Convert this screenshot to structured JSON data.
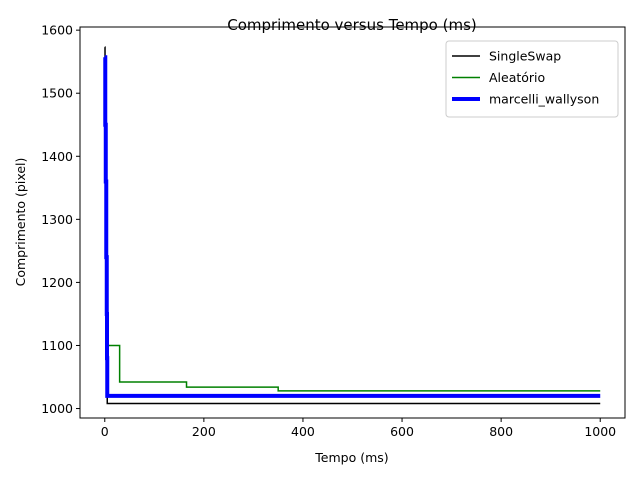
{
  "chart_data": {
    "type": "line",
    "title": "Comprimento versus Tempo (ms)",
    "xlabel": "Tempo (ms)",
    "ylabel": "Comprimento (pixel)",
    "xlim": [
      -50,
      1050
    ],
    "ylim": [
      985,
      1605
    ],
    "xticks": [
      0,
      200,
      400,
      600,
      800,
      1000
    ],
    "yticks": [
      1000,
      1100,
      1200,
      1300,
      1400,
      1500,
      1600
    ],
    "grid": false,
    "legend_position": "top-right",
    "series": [
      {
        "name": "SingleSwap",
        "color": "#000000",
        "width": 1.5,
        "step": "post",
        "points": [
          [
            0,
            1573
          ],
          [
            0.5,
            1520
          ],
          [
            1,
            1450
          ],
          [
            1.5,
            1380
          ],
          [
            2,
            1300
          ],
          [
            2.5,
            1230
          ],
          [
            3,
            1160
          ],
          [
            3.5,
            1080
          ],
          [
            4,
            1040
          ],
          [
            5,
            1008
          ],
          [
            1000,
            1008
          ]
        ]
      },
      {
        "name": "Aleatório",
        "color": "#008000",
        "width": 1.5,
        "step": "post",
        "points": [
          [
            0,
            1540
          ],
          [
            1,
            1470
          ],
          [
            2,
            1400
          ],
          [
            3,
            1300
          ],
          [
            4,
            1200
          ],
          [
            5,
            1100
          ],
          [
            30,
            1042
          ],
          [
            165,
            1034
          ],
          [
            350,
            1028
          ],
          [
            1000,
            1028
          ]
        ]
      },
      {
        "name": "marcelli_wallyson",
        "color": "#0000ff",
        "width": 4,
        "step": "post",
        "points": [
          [
            0,
            1557
          ],
          [
            1,
            1450
          ],
          [
            2,
            1360
          ],
          [
            3,
            1240
          ],
          [
            4,
            1150
          ],
          [
            4.5,
            1080
          ],
          [
            5,
            1020
          ],
          [
            1000,
            1020
          ]
        ]
      }
    ]
  }
}
